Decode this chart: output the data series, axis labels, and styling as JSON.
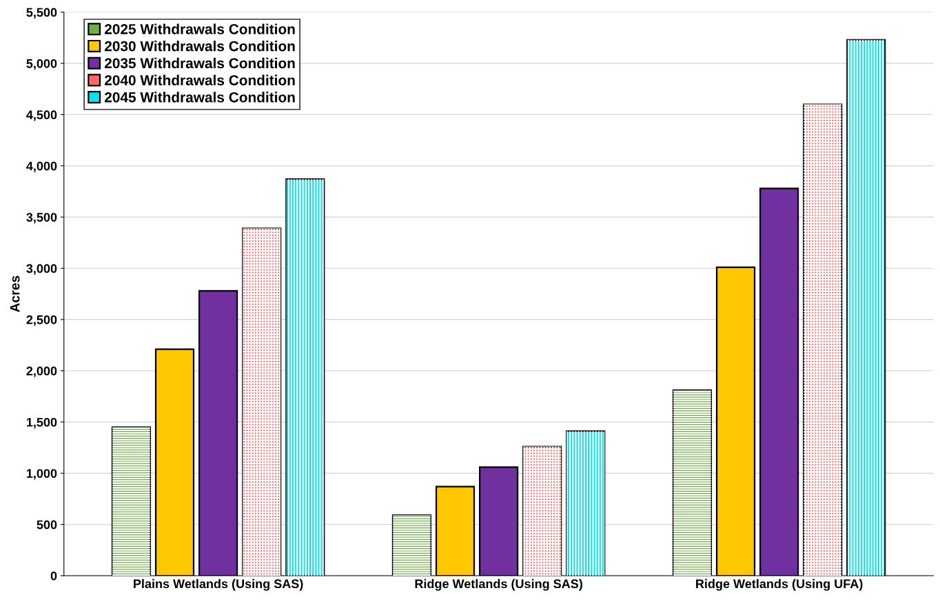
{
  "chart_data": {
    "type": "bar",
    "ylabel": "Acres",
    "categories": [
      "Plains Wetlands (Using SAS)",
      "Ridge Wetlands (Using SAS)",
      "Ridge Wetlands (Using UFA)"
    ],
    "series": [
      {
        "name": "2025 Withdrawals Condition",
        "color": "#70ad47",
        "values": [
          1450,
          590,
          1810
        ]
      },
      {
        "name": "2030 Withdrawals Condition",
        "color": "#ffc800",
        "values": [
          2210,
          870,
          3010
        ]
      },
      {
        "name": "2035 Withdrawals Condition",
        "color": "#7030a0",
        "values": [
          2780,
          1060,
          3780
        ]
      },
      {
        "name": "2040 Withdrawals Condition",
        "color": "#ff6666",
        "values": [
          3390,
          1260,
          4600
        ]
      },
      {
        "name": "2045 Withdrawals Condition",
        "color": "#00e5ee",
        "values": [
          3870,
          1410,
          5230
        ]
      }
    ],
    "ylim": [
      0,
      5500
    ],
    "yticks": [
      0,
      500,
      {
        "value": 1000,
        "label": "1,000"
      },
      {
        "value": 1500,
        "label": "1,500"
      },
      {
        "value": 2000,
        "label": "2,000"
      },
      {
        "value": 2500,
        "label": "2,500"
      },
      {
        "value": 3000,
        "label": "3,000"
      },
      {
        "value": 3500,
        "label": "3,500"
      },
      {
        "value": 4000,
        "label": "4,000"
      },
      {
        "value": 4500,
        "label": "4,500"
      },
      {
        "value": 5000,
        "label": "5,000"
      },
      {
        "value": 5500,
        "label": "5,500"
      }
    ],
    "grid": "y",
    "legend": "top left"
  }
}
